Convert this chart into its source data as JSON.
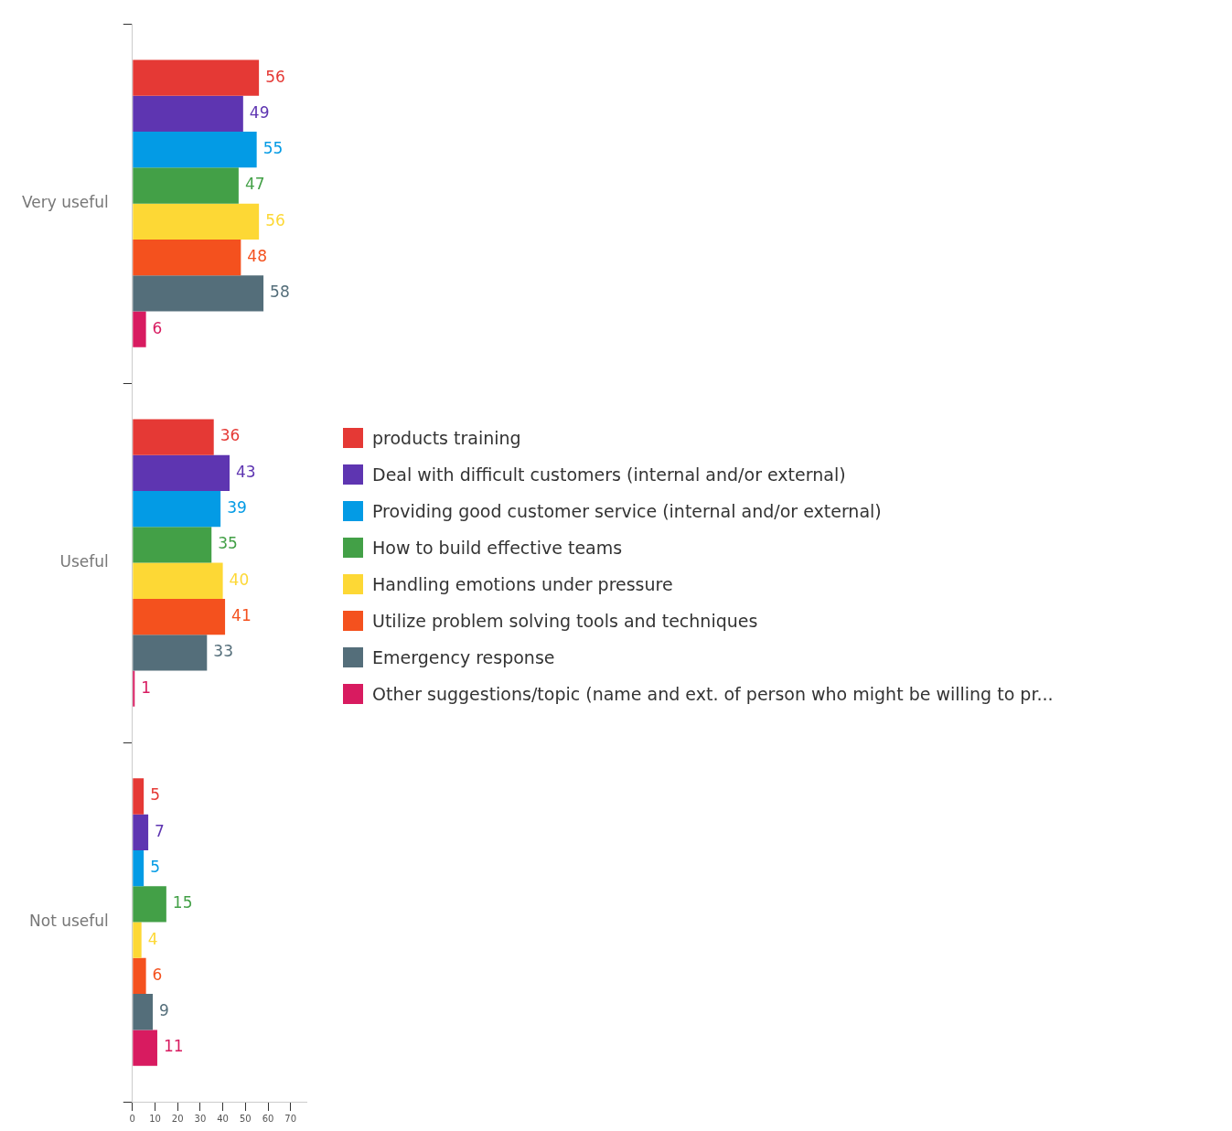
{
  "chart_data": {
    "type": "bar",
    "orientation": "horizontal",
    "categories": [
      "Very useful",
      "Useful",
      "Not useful"
    ],
    "series": [
      {
        "name": "products training",
        "color": "#e53935",
        "values": [
          56,
          36,
          5
        ]
      },
      {
        "name": "Deal with difficult customers (internal and/or external)",
        "color": "#5e35b1",
        "values": [
          49,
          43,
          7
        ]
      },
      {
        "name": "Providing good customer service (internal and/or external)",
        "color": "#039be5",
        "values": [
          55,
          39,
          5
        ]
      },
      {
        "name": "How to build effective teams",
        "color": "#43a047",
        "values": [
          47,
          35,
          15
        ]
      },
      {
        "name": "Handling emotions under pressure",
        "color": "#fdd835",
        "values": [
          56,
          40,
          4
        ]
      },
      {
        "name": "Utilize problem solving tools and techniques",
        "color": "#f4511e",
        "values": [
          48,
          41,
          6
        ]
      },
      {
        "name": "Emergency response",
        "color": "#546e7a",
        "values": [
          58,
          33,
          9
        ]
      },
      {
        "name": "Other suggestions/topic (name and ext. of person who might be willing to pr...",
        "color": "#d81b60",
        "values": [
          6,
          1,
          11
        ]
      }
    ],
    "xlim": [
      0,
      77
    ],
    "xticks": [
      0,
      10,
      20,
      30,
      40,
      50,
      60,
      70
    ],
    "data_labels": true,
    "legend": "right",
    "grid": false
  }
}
